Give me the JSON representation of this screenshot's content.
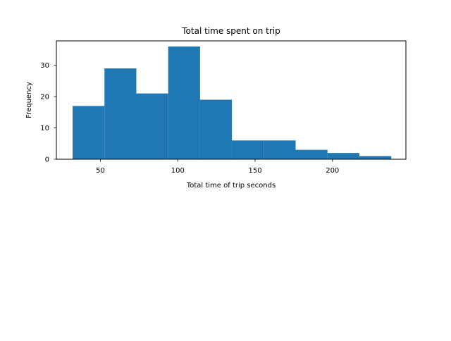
{
  "chart_data": {
    "type": "bar",
    "title": "Total time spent on trip",
    "xlabel": "Total time of trip seconds",
    "ylabel": "Frequency",
    "xlim": [
      21.5,
      247.5
    ],
    "ylim": [
      0,
      37.8
    ],
    "xticks": [
      50,
      100,
      150,
      200
    ],
    "yticks": [
      0,
      10,
      20,
      30
    ],
    "bins": [
      {
        "x0": 32,
        "x1": 52.6,
        "count": 17
      },
      {
        "x0": 52.6,
        "x1": 73.2,
        "count": 29
      },
      {
        "x0": 73.2,
        "x1": 93.8,
        "count": 21
      },
      {
        "x0": 93.8,
        "x1": 114.4,
        "count": 36
      },
      {
        "x0": 114.4,
        "x1": 135,
        "count": 19
      },
      {
        "x0": 135,
        "x1": 155.6,
        "count": 6
      },
      {
        "x0": 155.6,
        "x1": 176.2,
        "count": 6
      },
      {
        "x0": 176.2,
        "x1": 196.8,
        "count": 3
      },
      {
        "x0": 196.8,
        "x1": 217.4,
        "count": 2
      },
      {
        "x0": 217.4,
        "x1": 238,
        "count": 1
      }
    ],
    "bar_color": "#1f77b4",
    "grid": false,
    "legend": "none"
  }
}
